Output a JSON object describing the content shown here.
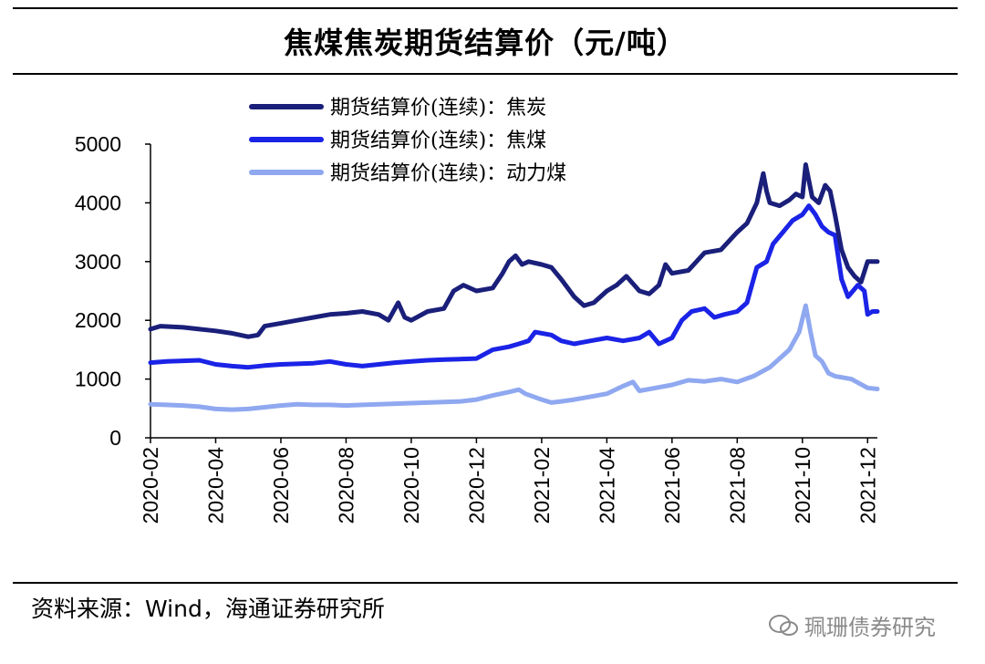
{
  "title": "焦煤焦炭期货结算价（元/吨）",
  "source": "资料来源：Wind，海通证券研究所",
  "watermark": "珮珊债券研究",
  "colors": {
    "coke": "#1a1f7a",
    "coking_coal": "#1a23e6",
    "thermal_coal": "#8fa8f0"
  },
  "chart_data": {
    "type": "line",
    "title": "焦煤焦炭期货结算价（元/吨）",
    "xlabel": "",
    "ylabel": "",
    "ylim": [
      0,
      5000
    ],
    "yticks": [
      "0",
      "1000",
      "2000",
      "3000",
      "4000",
      "5000"
    ],
    "xticks": [
      "2020-02",
      "2020-04",
      "2020-06",
      "2020-08",
      "2020-10",
      "2020-12",
      "2021-02",
      "2021-04",
      "2021-06",
      "2021-08",
      "2021-10",
      "2021-12"
    ],
    "x_start": "2020-02",
    "x_unit": "months since 2020-02",
    "legend_position": "top-left",
    "series": [
      {
        "name": "期货结算价(连续)：焦炭",
        "color_key": "coke",
        "points": [
          [
            0,
            1850
          ],
          [
            0.3,
            1900
          ],
          [
            1,
            1880
          ],
          [
            1.5,
            1850
          ],
          [
            2,
            1820
          ],
          [
            2.5,
            1780
          ],
          [
            3,
            1720
          ],
          [
            3.3,
            1750
          ],
          [
            3.5,
            1900
          ],
          [
            4,
            1950
          ],
          [
            4.5,
            2000
          ],
          [
            5,
            2050
          ],
          [
            5.5,
            2100
          ],
          [
            6,
            2120
          ],
          [
            6.5,
            2150
          ],
          [
            7,
            2100
          ],
          [
            7.3,
            2000
          ],
          [
            7.6,
            2300
          ],
          [
            7.8,
            2050
          ],
          [
            8,
            2000
          ],
          [
            8.5,
            2150
          ],
          [
            9,
            2200
          ],
          [
            9.3,
            2500
          ],
          [
            9.6,
            2600
          ],
          [
            10,
            2500
          ],
          [
            10.5,
            2550
          ],
          [
            10.8,
            2800
          ],
          [
            11,
            3000
          ],
          [
            11.2,
            3100
          ],
          [
            11.4,
            2950
          ],
          [
            11.6,
            3000
          ],
          [
            12,
            2950
          ],
          [
            12.3,
            2900
          ],
          [
            12.6,
            2700
          ],
          [
            13,
            2400
          ],
          [
            13.3,
            2250
          ],
          [
            13.6,
            2300
          ],
          [
            14,
            2500
          ],
          [
            14.3,
            2600
          ],
          [
            14.6,
            2750
          ],
          [
            15,
            2500
          ],
          [
            15.3,
            2450
          ],
          [
            15.6,
            2600
          ],
          [
            15.8,
            2950
          ],
          [
            16,
            2800
          ],
          [
            16.5,
            2850
          ],
          [
            17,
            3150
          ],
          [
            17.5,
            3200
          ],
          [
            18,
            3500
          ],
          [
            18.3,
            3650
          ],
          [
            18.6,
            4000
          ],
          [
            18.8,
            4500
          ],
          [
            18.9,
            4200
          ],
          [
            19,
            4000
          ],
          [
            19.3,
            3950
          ],
          [
            19.6,
            4050
          ],
          [
            19.8,
            4150
          ],
          [
            20,
            4100
          ],
          [
            20.1,
            4650
          ],
          [
            20.3,
            4100
          ],
          [
            20.5,
            4000
          ],
          [
            20.7,
            4300
          ],
          [
            20.85,
            4200
          ],
          [
            21,
            3800
          ],
          [
            21.2,
            3200
          ],
          [
            21.4,
            2900
          ],
          [
            21.6,
            2750
          ],
          [
            21.8,
            2650
          ],
          [
            22,
            3000
          ],
          [
            22.3,
            3000
          ]
        ]
      },
      {
        "name": "期货结算价(连续)：焦煤",
        "color_key": "coking_coal",
        "points": [
          [
            0,
            1280
          ],
          [
            0.5,
            1300
          ],
          [
            1,
            1310
          ],
          [
            1.5,
            1320
          ],
          [
            2,
            1250
          ],
          [
            2.5,
            1220
          ],
          [
            3,
            1200
          ],
          [
            3.5,
            1230
          ],
          [
            4,
            1250
          ],
          [
            4.5,
            1260
          ],
          [
            5,
            1270
          ],
          [
            5.5,
            1300
          ],
          [
            6,
            1250
          ],
          [
            6.5,
            1220
          ],
          [
            7,
            1250
          ],
          [
            7.5,
            1280
          ],
          [
            8,
            1300
          ],
          [
            8.5,
            1320
          ],
          [
            9,
            1330
          ],
          [
            9.5,
            1340
          ],
          [
            10,
            1350
          ],
          [
            10.5,
            1500
          ],
          [
            11,
            1550
          ],
          [
            11.3,
            1600
          ],
          [
            11.6,
            1650
          ],
          [
            11.8,
            1800
          ],
          [
            12.3,
            1750
          ],
          [
            12.6,
            1650
          ],
          [
            13,
            1600
          ],
          [
            13.5,
            1650
          ],
          [
            14,
            1700
          ],
          [
            14.5,
            1650
          ],
          [
            15,
            1700
          ],
          [
            15.3,
            1800
          ],
          [
            15.6,
            1600
          ],
          [
            16,
            1700
          ],
          [
            16.3,
            2000
          ],
          [
            16.6,
            2150
          ],
          [
            17,
            2200
          ],
          [
            17.3,
            2050
          ],
          [
            17.6,
            2100
          ],
          [
            18,
            2150
          ],
          [
            18.3,
            2300
          ],
          [
            18.6,
            2900
          ],
          [
            18.9,
            3000
          ],
          [
            19.1,
            3300
          ],
          [
            19.4,
            3500
          ],
          [
            19.7,
            3700
          ],
          [
            20,
            3800
          ],
          [
            20.2,
            3950
          ],
          [
            20.4,
            3800
          ],
          [
            20.6,
            3600
          ],
          [
            20.8,
            3500
          ],
          [
            21,
            3450
          ],
          [
            21.2,
            2700
          ],
          [
            21.4,
            2400
          ],
          [
            21.7,
            2600
          ],
          [
            21.9,
            2500
          ],
          [
            22,
            2100
          ],
          [
            22.15,
            2150
          ],
          [
            22.3,
            2150
          ]
        ]
      },
      {
        "name": "期货结算价(连续)：动力煤",
        "color_key": "thermal_coal",
        "points": [
          [
            0,
            570
          ],
          [
            0.5,
            560
          ],
          [
            1,
            550
          ],
          [
            1.5,
            530
          ],
          [
            2,
            490
          ],
          [
            2.5,
            480
          ],
          [
            3,
            490
          ],
          [
            3.5,
            520
          ],
          [
            4,
            550
          ],
          [
            4.5,
            570
          ],
          [
            5,
            560
          ],
          [
            5.5,
            560
          ],
          [
            6,
            550
          ],
          [
            6.5,
            560
          ],
          [
            7,
            570
          ],
          [
            7.5,
            580
          ],
          [
            8,
            590
          ],
          [
            8.5,
            600
          ],
          [
            9,
            610
          ],
          [
            9.5,
            620
          ],
          [
            10,
            650
          ],
          [
            10.5,
            720
          ],
          [
            11,
            780
          ],
          [
            11.3,
            820
          ],
          [
            11.5,
            750
          ],
          [
            12,
            650
          ],
          [
            12.3,
            600
          ],
          [
            12.6,
            620
          ],
          [
            13,
            650
          ],
          [
            13.5,
            700
          ],
          [
            14,
            750
          ],
          [
            14.5,
            880
          ],
          [
            14.8,
            950
          ],
          [
            15,
            800
          ],
          [
            15.5,
            850
          ],
          [
            16,
            900
          ],
          [
            16.5,
            980
          ],
          [
            17,
            960
          ],
          [
            17.5,
            1000
          ],
          [
            18,
            950
          ],
          [
            18.5,
            1050
          ],
          [
            19,
            1200
          ],
          [
            19.3,
            1350
          ],
          [
            19.6,
            1500
          ],
          [
            19.9,
            1800
          ],
          [
            20.1,
            2250
          ],
          [
            20.25,
            1800
          ],
          [
            20.4,
            1400
          ],
          [
            20.6,
            1300
          ],
          [
            20.8,
            1100
          ],
          [
            21,
            1050
          ],
          [
            21.5,
            1000
          ],
          [
            22,
            850
          ],
          [
            22.3,
            830
          ]
        ]
      }
    ]
  }
}
